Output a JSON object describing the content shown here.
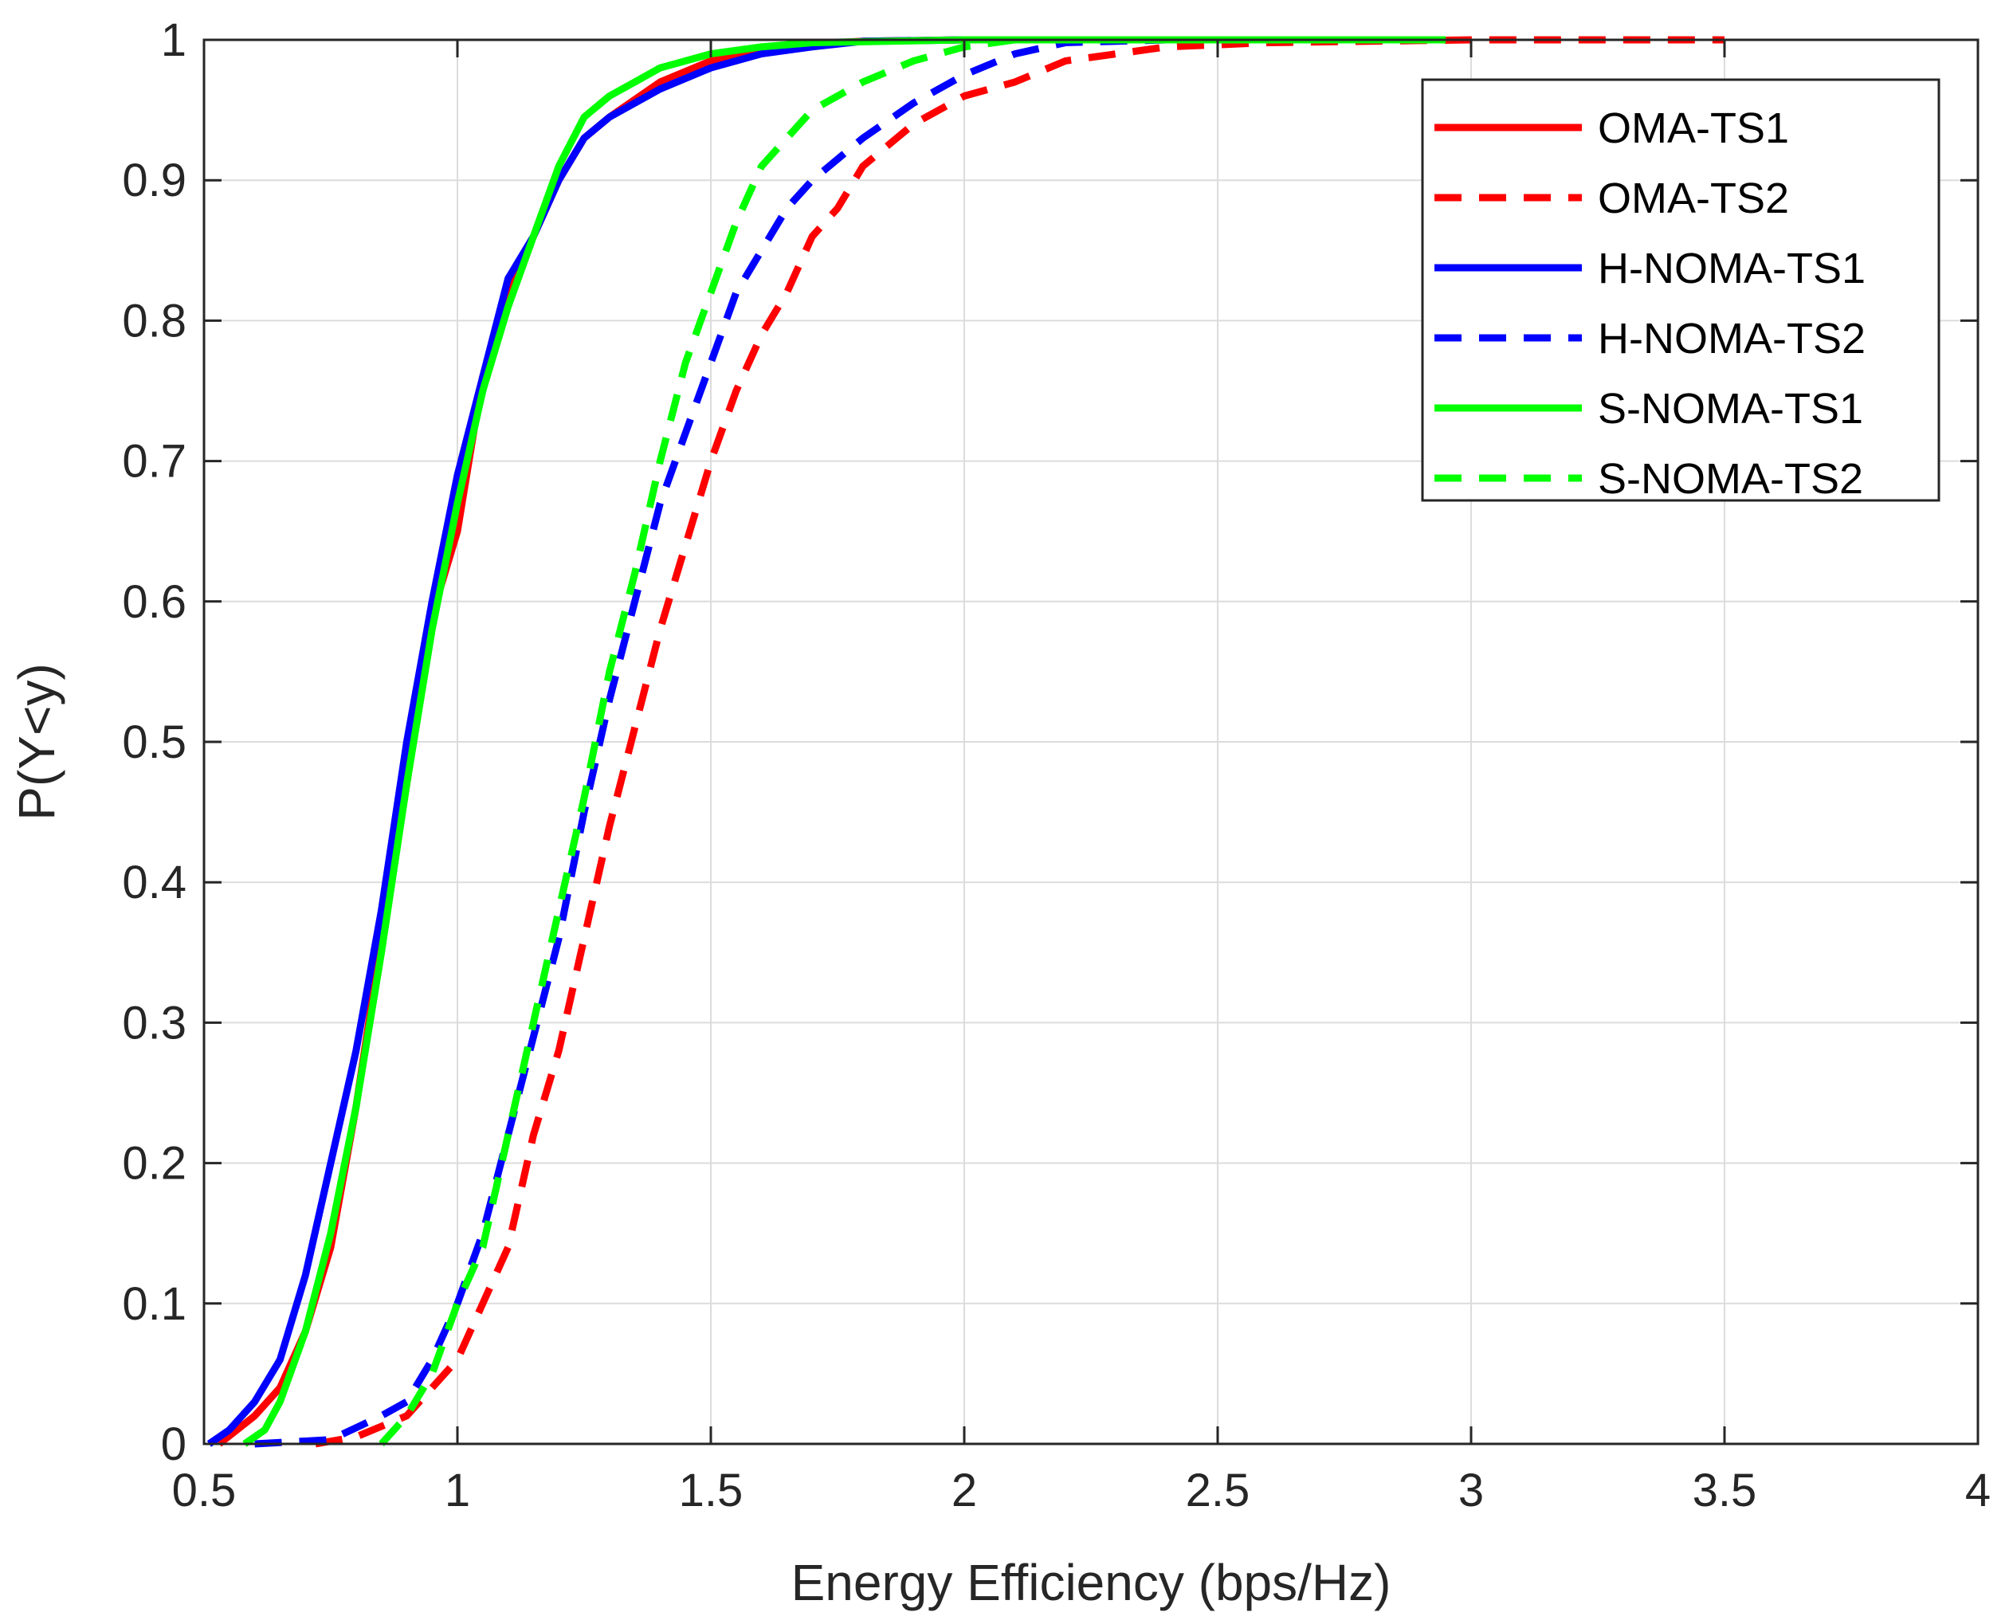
{
  "chart_data": {
    "type": "line",
    "title": "",
    "xlabel": "Energy Efficiency (bps/Hz)",
    "ylabel": "P(Y<y)",
    "xlim": [
      0.5,
      4
    ],
    "ylim": [
      0,
      1
    ],
    "xticks": [
      0.5,
      1,
      1.5,
      2,
      2.5,
      3,
      3.5,
      4
    ],
    "xtick_labels": [
      "0.5",
      "1",
      "1.5",
      "2",
      "2.5",
      "3",
      "3.5",
      "4"
    ],
    "yticks": [
      0,
      0.1,
      0.2,
      0.3,
      0.4,
      0.5,
      0.6,
      0.7,
      0.8,
      0.9,
      1
    ],
    "ytick_labels": [
      "0",
      "0.1",
      "0.2",
      "0.3",
      "0.4",
      "0.5",
      "0.6",
      "0.7",
      "0.8",
      "0.9",
      "1"
    ],
    "grid": true,
    "legend_position": "top-right",
    "series": [
      {
        "name": "OMA-TS1",
        "color": "#ff0000",
        "style": "solid",
        "x": [
          0.53,
          0.6,
          0.65,
          0.7,
          0.75,
          0.8,
          0.85,
          0.9,
          0.95,
          1.0,
          1.05,
          1.1,
          1.15,
          1.2,
          1.25,
          1.3,
          1.4,
          1.5,
          1.6,
          1.7,
          1.8,
          2.0
        ],
        "y": [
          0.0,
          0.02,
          0.04,
          0.08,
          0.14,
          0.24,
          0.36,
          0.47,
          0.59,
          0.65,
          0.76,
          0.82,
          0.86,
          0.9,
          0.93,
          0.945,
          0.97,
          0.985,
          0.993,
          0.997,
          0.999,
          1.0
        ]
      },
      {
        "name": "OMA-TS2",
        "color": "#ff0000",
        "style": "dashed",
        "x": [
          0.72,
          0.8,
          0.9,
          1.0,
          1.05,
          1.1,
          1.15,
          1.2,
          1.25,
          1.3,
          1.35,
          1.4,
          1.45,
          1.5,
          1.55,
          1.6,
          1.65,
          1.7,
          1.75,
          1.8,
          1.9,
          2.0,
          2.1,
          2.2,
          2.4,
          2.6,
          3.0,
          3.5
        ],
        "y": [
          0.0,
          0.005,
          0.02,
          0.06,
          0.1,
          0.14,
          0.22,
          0.28,
          0.36,
          0.44,
          0.51,
          0.58,
          0.64,
          0.7,
          0.75,
          0.79,
          0.82,
          0.86,
          0.88,
          0.91,
          0.94,
          0.96,
          0.97,
          0.985,
          0.995,
          0.998,
          1.0,
          1.0
        ]
      },
      {
        "name": "H-NOMA-TS1",
        "color": "#0000ff",
        "style": "solid",
        "x": [
          0.51,
          0.55,
          0.6,
          0.65,
          0.7,
          0.75,
          0.8,
          0.85,
          0.9,
          0.95,
          1.0,
          1.05,
          1.1,
          1.15,
          1.2,
          1.25,
          1.3,
          1.4,
          1.5,
          1.6,
          1.7,
          1.8,
          2.0
        ],
        "y": [
          0.0,
          0.01,
          0.03,
          0.06,
          0.12,
          0.2,
          0.28,
          0.38,
          0.5,
          0.6,
          0.69,
          0.76,
          0.83,
          0.86,
          0.9,
          0.93,
          0.945,
          0.965,
          0.98,
          0.99,
          0.995,
          0.999,
          1.0
        ]
      },
      {
        "name": "H-NOMA-TS2",
        "color": "#0000ff",
        "style": "dashed",
        "x": [
          0.6,
          0.75,
          0.85,
          0.9,
          0.95,
          1.0,
          1.05,
          1.1,
          1.15,
          1.2,
          1.25,
          1.3,
          1.35,
          1.4,
          1.45,
          1.5,
          1.55,
          1.6,
          1.65,
          1.7,
          1.8,
          1.9,
          2.0,
          2.1,
          2.2,
          2.4
        ],
        "y": [
          0.0,
          0.003,
          0.02,
          0.03,
          0.06,
          0.1,
          0.15,
          0.22,
          0.29,
          0.36,
          0.45,
          0.53,
          0.6,
          0.67,
          0.72,
          0.77,
          0.82,
          0.85,
          0.88,
          0.9,
          0.93,
          0.955,
          0.975,
          0.99,
          0.998,
          1.0
        ]
      },
      {
        "name": "S-NOMA-TS1",
        "color": "#00ff00",
        "style": "solid",
        "x": [
          0.58,
          0.62,
          0.65,
          0.7,
          0.75,
          0.8,
          0.85,
          0.9,
          0.95,
          1.0,
          1.05,
          1.1,
          1.15,
          1.2,
          1.25,
          1.3,
          1.35,
          1.4,
          1.5,
          1.6,
          1.7,
          2.0,
          2.5,
          2.95
        ],
        "y": [
          0.0,
          0.01,
          0.03,
          0.08,
          0.15,
          0.24,
          0.35,
          0.47,
          0.58,
          0.67,
          0.75,
          0.81,
          0.86,
          0.91,
          0.945,
          0.96,
          0.97,
          0.98,
          0.99,
          0.995,
          0.998,
          1.0,
          1.0,
          1.0
        ]
      },
      {
        "name": "S-NOMA-TS2",
        "color": "#00ff00",
        "style": "dashed",
        "x": [
          0.85,
          0.9,
          0.95,
          1.0,
          1.05,
          1.1,
          1.15,
          1.2,
          1.25,
          1.3,
          1.35,
          1.4,
          1.45,
          1.5,
          1.55,
          1.6,
          1.65,
          1.7,
          1.8,
          1.9,
          2.0,
          2.1
        ],
        "y": [
          0.0,
          0.02,
          0.05,
          0.1,
          0.14,
          0.22,
          0.3,
          0.38,
          0.46,
          0.55,
          0.62,
          0.7,
          0.77,
          0.82,
          0.87,
          0.91,
          0.93,
          0.95,
          0.97,
          0.985,
          0.995,
          1.0
        ]
      }
    ]
  }
}
